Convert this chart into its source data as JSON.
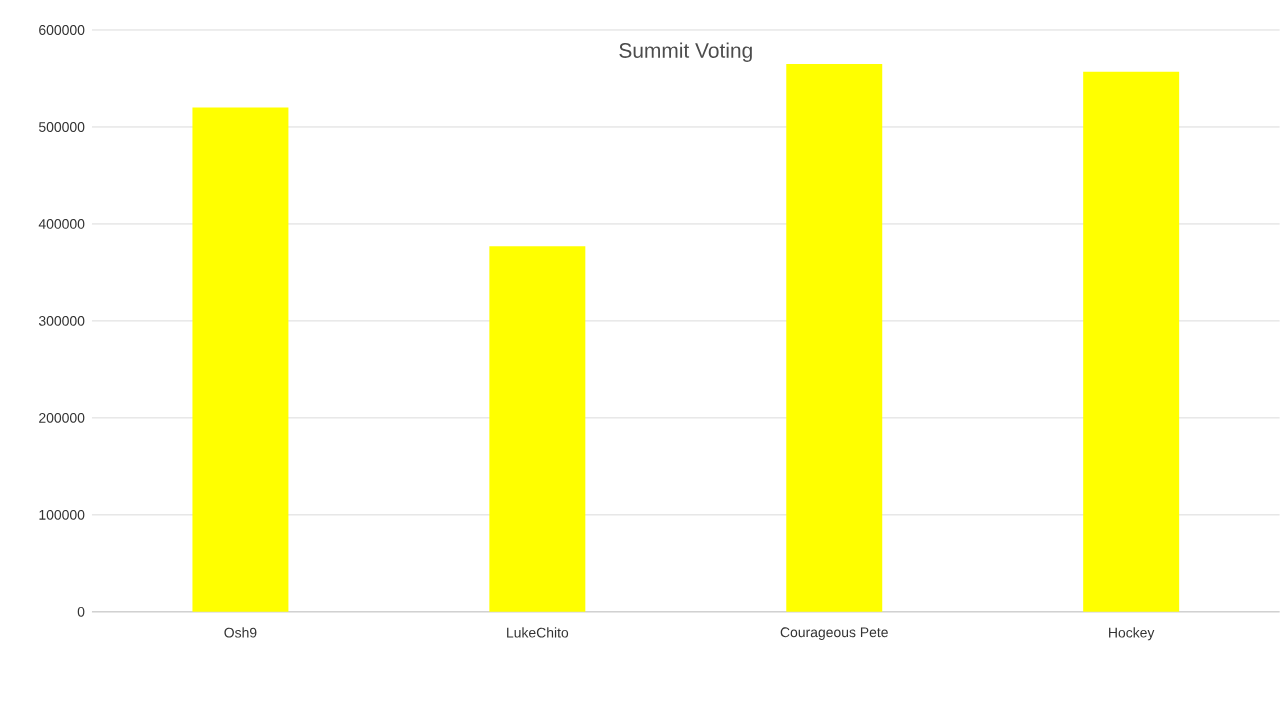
{
  "chart_data": {
    "type": "bar",
    "title": "Summit Voting",
    "categories": [
      "Osh9",
      "LukeChito",
      "Courageous Pete",
      "Hockey"
    ],
    "values": [
      520000,
      377000,
      565000,
      557000
    ],
    "color": "#ffff00",
    "ylim": [
      0,
      600000
    ],
    "yticks": [
      0,
      100000,
      200000,
      300000,
      400000,
      500000,
      600000
    ],
    "grid": "y"
  }
}
